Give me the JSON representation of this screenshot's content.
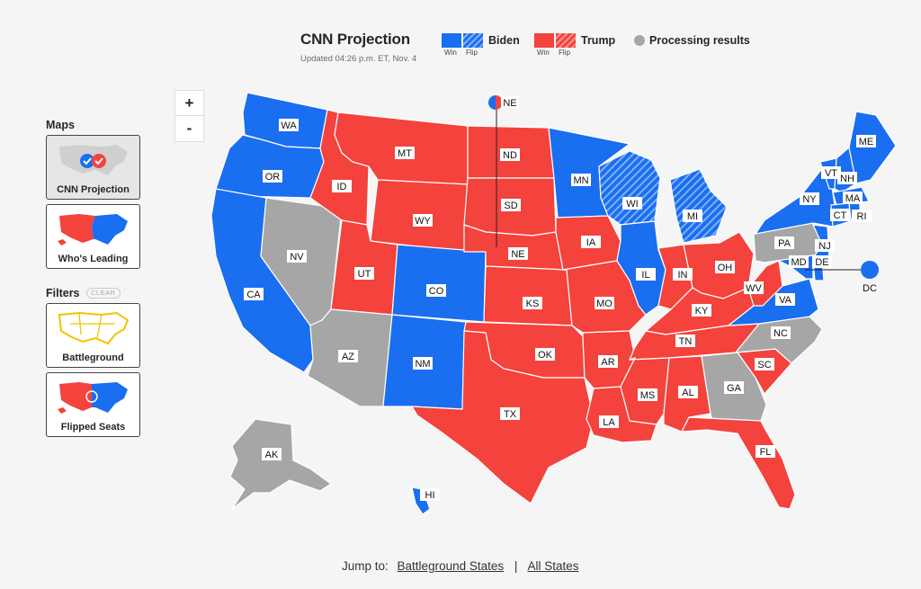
{
  "header": {
    "title": "CNN Projection",
    "updated": "Updated 04:26 p.m. ET, Nov. 4"
  },
  "legend": {
    "biden": {
      "name": "Biden",
      "win": "Win",
      "flip": "Flip",
      "color": "#1a6ef0"
    },
    "trump": {
      "name": "Trump",
      "win": "Win",
      "flip": "Flip",
      "color": "#f4423d"
    },
    "processing": {
      "name": "Processing results",
      "color": "#a6a6a6"
    }
  },
  "zoom": {
    "in": "+",
    "out": "-"
  },
  "sidebar": {
    "maps_heading": "Maps",
    "filters_heading": "Filters",
    "clear": "CLEAR",
    "maps": [
      {
        "label": "CNN Projection",
        "active": true
      },
      {
        "label": "Who's Leading",
        "active": false
      }
    ],
    "filters": [
      {
        "label": "Battleground"
      },
      {
        "label": "Flipped Seats"
      }
    ]
  },
  "states": [
    {
      "abbr": "WA",
      "status": "biden-win"
    },
    {
      "abbr": "OR",
      "status": "biden-win"
    },
    {
      "abbr": "CA",
      "status": "biden-win"
    },
    {
      "abbr": "NV",
      "status": "processing"
    },
    {
      "abbr": "ID",
      "status": "trump-win"
    },
    {
      "abbr": "MT",
      "status": "trump-win"
    },
    {
      "abbr": "WY",
      "status": "trump-win"
    },
    {
      "abbr": "UT",
      "status": "trump-win"
    },
    {
      "abbr": "AZ",
      "status": "processing"
    },
    {
      "abbr": "CO",
      "status": "biden-win"
    },
    {
      "abbr": "NM",
      "status": "biden-win"
    },
    {
      "abbr": "ND",
      "status": "trump-win"
    },
    {
      "abbr": "SD",
      "status": "trump-win"
    },
    {
      "abbr": "NE",
      "status": "trump-win"
    },
    {
      "abbr": "KS",
      "status": "trump-win"
    },
    {
      "abbr": "OK",
      "status": "trump-win"
    },
    {
      "abbr": "TX",
      "status": "trump-win"
    },
    {
      "abbr": "MN",
      "status": "biden-win"
    },
    {
      "abbr": "IA",
      "status": "trump-win"
    },
    {
      "abbr": "MO",
      "status": "trump-win"
    },
    {
      "abbr": "AR",
      "status": "trump-win"
    },
    {
      "abbr": "LA",
      "status": "trump-win"
    },
    {
      "abbr": "WI",
      "status": "biden-flip"
    },
    {
      "abbr": "IL",
      "status": "biden-win"
    },
    {
      "abbr": "MI",
      "status": "biden-flip"
    },
    {
      "abbr": "IN",
      "status": "trump-win"
    },
    {
      "abbr": "OH",
      "status": "trump-win"
    },
    {
      "abbr": "KY",
      "status": "trump-win"
    },
    {
      "abbr": "TN",
      "status": "trump-win"
    },
    {
      "abbr": "MS",
      "status": "trump-win"
    },
    {
      "abbr": "AL",
      "status": "trump-win"
    },
    {
      "abbr": "GA",
      "status": "processing"
    },
    {
      "abbr": "FL",
      "status": "trump-win"
    },
    {
      "abbr": "SC",
      "status": "trump-win"
    },
    {
      "abbr": "NC",
      "status": "processing"
    },
    {
      "abbr": "VA",
      "status": "biden-win"
    },
    {
      "abbr": "WV",
      "status": "trump-win"
    },
    {
      "abbr": "PA",
      "status": "processing"
    },
    {
      "abbr": "NY",
      "status": "biden-win"
    },
    {
      "abbr": "VT",
      "status": "biden-win"
    },
    {
      "abbr": "NH",
      "status": "biden-win"
    },
    {
      "abbr": "ME",
      "status": "biden-win"
    },
    {
      "abbr": "MA",
      "status": "biden-win"
    },
    {
      "abbr": "CT",
      "status": "biden-win"
    },
    {
      "abbr": "RI",
      "status": "biden-win"
    },
    {
      "abbr": "NJ",
      "status": "biden-win"
    },
    {
      "abbr": "DE",
      "status": "biden-win"
    },
    {
      "abbr": "MD",
      "status": "biden-win"
    },
    {
      "abbr": "DC",
      "status": "biden-win"
    },
    {
      "abbr": "AK",
      "status": "processing"
    },
    {
      "abbr": "HI",
      "status": "biden-win"
    }
  ],
  "callouts": {
    "ne": "NE",
    "dc": "DC"
  },
  "footer": {
    "jump_to": "Jump to:",
    "battleground": "Battleground States",
    "separator": "|",
    "all_states": "All States"
  }
}
